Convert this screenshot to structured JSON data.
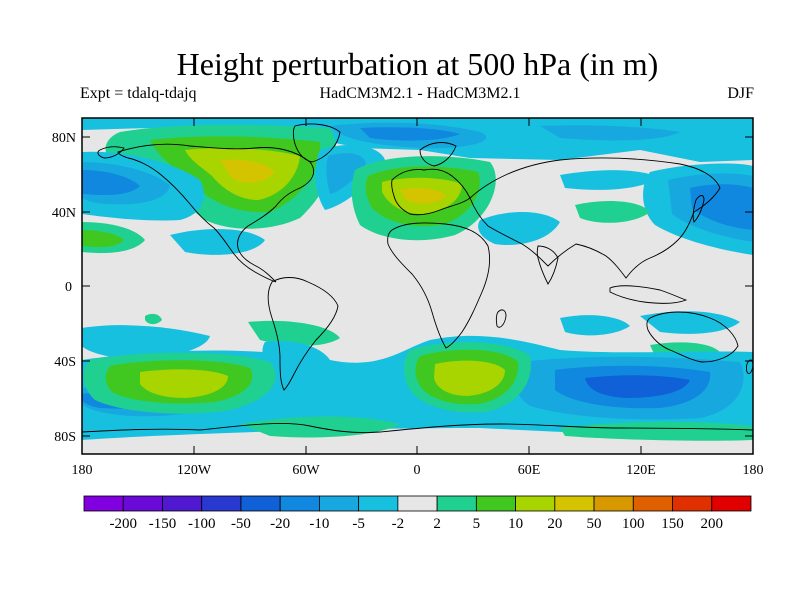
{
  "title": "Height perturbation at 500 hPa (in m)",
  "subtitle_left": "Expt = tdalq-tdajq",
  "subtitle_center": "HadCM3M2.1 - HadCM3M2.1",
  "subtitle_right": "DJF",
  "lat_ticks": [
    "80N",
    "40N",
    "0",
    "40S",
    "80S"
  ],
  "lon_ticks": [
    "180",
    "120W",
    "60W",
    "0",
    "60E",
    "120E",
    "180"
  ],
  "colorbar": {
    "labels": [
      "-200",
      "-150",
      "-100",
      "-50",
      "-20",
      "-10",
      "-5",
      "-2",
      "2",
      "5",
      "10",
      "20",
      "50",
      "100",
      "150",
      "200"
    ],
    "colors": [
      "#8000e0",
      "#6a0ad8",
      "#5018d0",
      "#2838d0",
      "#1060d8",
      "#1088e0",
      "#18a8e0",
      "#18c0e0",
      "#e6e6e6",
      "#20d090",
      "#40c820",
      "#a8d400",
      "#d4c400",
      "#d89800",
      "#e06000",
      "#e03000",
      "#e00000"
    ]
  },
  "colors": {
    "neutral": "#e6e6e6",
    "neg_weak": "#18c0e0",
    "neg_mid": "#18a8e0",
    "neg_strong": "#1088e0",
    "neg_stronger": "#1060d8",
    "pos_weak": "#20d090",
    "pos_mid": "#40c820",
    "pos_strong": "#a8d400",
    "pos_stronger": "#d4c400"
  }
}
